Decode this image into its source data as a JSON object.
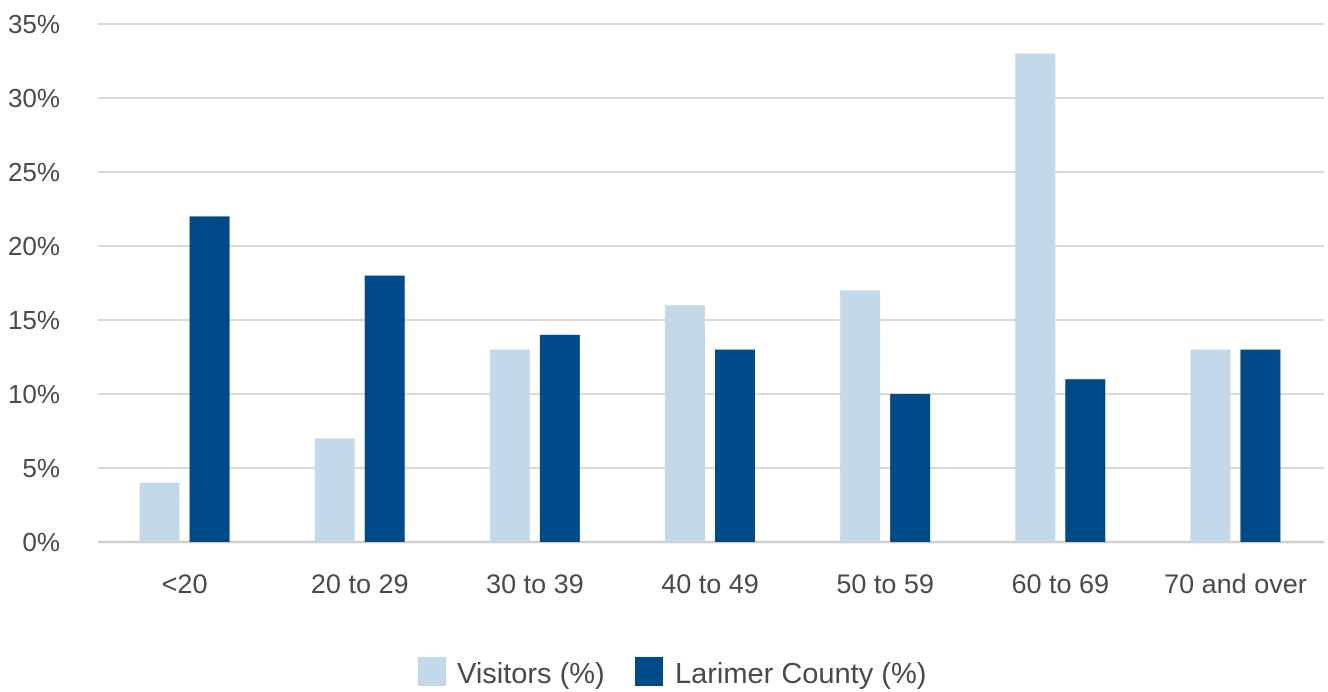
{
  "chart_data": {
    "type": "bar",
    "title": "",
    "xlabel": "",
    "ylabel": "",
    "categories": [
      "<20",
      "20 to 29",
      "30 to 39",
      "40 to 49",
      "50 to 59",
      "60 to 69",
      "70 and over"
    ],
    "series": [
      {
        "name": "Visitors (%)",
        "color": "#c3d9e9",
        "values": [
          4,
          7,
          13,
          16,
          17,
          33,
          13
        ]
      },
      {
        "name": "Larimer County (%)",
        "color": "#004a8a",
        "values": [
          22,
          18,
          14,
          13,
          10,
          11,
          13
        ]
      }
    ],
    "ylim": [
      0,
      35
    ],
    "yticks": [
      "0%",
      "5%",
      "10%",
      "15%",
      "20%",
      "25%",
      "30%",
      "35%"
    ],
    "grid": true,
    "legend_position": "bottom-center"
  }
}
